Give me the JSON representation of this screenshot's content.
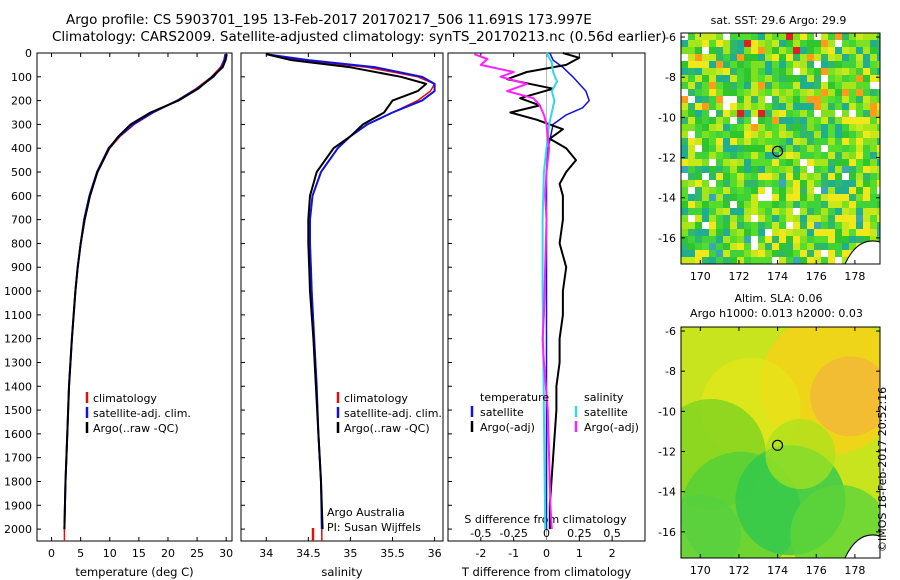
{
  "header": {
    "line1": "Argo profile: CS 5903701_195 13-Feb-2017 20170217_506 11.691S 173.997E",
    "line2": "Climatology: CARS2009. Satellite-adjusted climatology: synTS_20170213.nc (0.56d earlier)"
  },
  "colors": {
    "climatology": "#e01010",
    "satellite": "#1010e0",
    "argo": "#000000",
    "sal_satellite": "#30d8e8",
    "sal_argo": "#ff20ff"
  },
  "chart_data": [
    {
      "type": "line",
      "id": "temperature",
      "title": "",
      "xlabel": "temperature (deg C)",
      "ylabel": "",
      "xlim": [
        -2.5,
        31
      ],
      "ylim": [
        0,
        2050
      ],
      "x_ticks": [
        0,
        5,
        10,
        15,
        20,
        25,
        30
      ],
      "y_ticks": [
        0,
        100,
        200,
        300,
        400,
        500,
        600,
        700,
        800,
        900,
        1000,
        1100,
        1200,
        1300,
        1400,
        1500,
        1600,
        1700,
        1800,
        1900,
        2000
      ],
      "legend": [
        "climatology",
        "satellite-adj. clim.",
        "Argo(..raw -QC)"
      ],
      "legend_position": "lower-center",
      "series": [
        {
          "name": "climatology",
          "color_key": "climatology",
          "depth": [
            5,
            30,
            60,
            100,
            150,
            200,
            250,
            300,
            350,
            400,
            500,
            600,
            700,
            800,
            900,
            1000,
            1200,
            1400,
            1600,
            1800,
            2000,
            2050
          ],
          "values": [
            29.8,
            29.6,
            29.0,
            27.5,
            24.8,
            21.5,
            17.5,
            14.2,
            11.8,
            10.0,
            7.9,
            6.6,
            5.7,
            5.0,
            4.5,
            4.1,
            3.5,
            3.0,
            2.7,
            2.4,
            2.2,
            2.2
          ]
        },
        {
          "name": "satellite-adj. clim.",
          "color_key": "satellite",
          "depth": [
            5,
            30,
            60,
            100,
            150,
            200,
            250,
            300,
            350,
            400,
            500,
            600,
            700,
            800,
            900,
            1000,
            1200,
            1400,
            1600,
            1800,
            2000
          ],
          "values": [
            29.9,
            29.7,
            29.2,
            27.8,
            25.0,
            21.6,
            17.4,
            14.0,
            11.6,
            9.8,
            7.8,
            6.5,
            5.6,
            5.0,
            4.5,
            4.1,
            3.5,
            3.0,
            2.7,
            2.4,
            2.2
          ]
        },
        {
          "name": "Argo(..raw -QC)",
          "color_key": "argo",
          "depth": [
            5,
            30,
            60,
            100,
            150,
            200,
            250,
            300,
            350,
            400,
            500,
            600,
            700,
            800,
            900,
            1000,
            1200,
            1400,
            1600,
            1800,
            2000
          ],
          "values": [
            30.1,
            29.9,
            29.4,
            27.6,
            25.2,
            21.8,
            17.0,
            13.6,
            11.5,
            9.9,
            7.9,
            6.6,
            5.7,
            5.0,
            4.5,
            4.1,
            3.5,
            3.0,
            2.7,
            2.4,
            2.2
          ]
        }
      ]
    },
    {
      "type": "line",
      "id": "salinity",
      "title": "",
      "xlabel": "salinity",
      "ylabel": "",
      "xlim": [
        33.7,
        36.1
      ],
      "ylim": [
        0,
        2050
      ],
      "x_ticks": [
        34,
        34.5,
        35,
        35.5,
        36
      ],
      "legend": [
        "climatology",
        "satellite-adj. clim.",
        "Argo(..raw -QC)"
      ],
      "legend_position": "lower-right",
      "annotation": [
        "Argo Australia",
        "PI: Susan Wijffels"
      ],
      "series": [
        {
          "name": "climatology",
          "color_key": "climatology",
          "depth": [
            5,
            30,
            60,
            100,
            130,
            160,
            200,
            250,
            300,
            350,
            400,
            500,
            600,
            700,
            800,
            900,
            1000,
            1200,
            1400,
            1600,
            1800,
            2000,
            2050
          ],
          "values": [
            34.0,
            34.4,
            35.2,
            35.8,
            36.0,
            35.95,
            35.8,
            35.5,
            35.2,
            35.0,
            34.85,
            34.65,
            34.55,
            34.52,
            34.52,
            34.53,
            34.54,
            34.57,
            34.6,
            34.62,
            34.65,
            34.66,
            34.66
          ]
        },
        {
          "name": "satellite-adj. clim.",
          "color_key": "satellite",
          "depth": [
            5,
            30,
            60,
            100,
            130,
            160,
            200,
            250,
            300,
            350,
            400,
            500,
            600,
            700,
            800,
            900,
            1000,
            1200,
            1400,
            1600,
            1800,
            2000
          ],
          "values": [
            34.0,
            34.5,
            35.3,
            35.85,
            36.0,
            36.0,
            35.85,
            35.5,
            35.2,
            35.0,
            34.85,
            34.65,
            34.55,
            34.52,
            34.52,
            34.53,
            34.54,
            34.57,
            34.6,
            34.62,
            34.65,
            34.66
          ]
        },
        {
          "name": "Argo(..raw -QC)",
          "color_key": "argo",
          "depth": [
            5,
            30,
            60,
            100,
            130,
            160,
            200,
            250,
            300,
            350,
            400,
            500,
            600,
            700,
            800,
            900,
            1000,
            1200,
            1400,
            1600,
            1800,
            2000
          ],
          "values": [
            34.0,
            34.3,
            35.0,
            35.6,
            35.9,
            35.8,
            35.5,
            35.4,
            35.15,
            35.0,
            34.8,
            34.6,
            34.52,
            34.5,
            34.5,
            34.51,
            34.52,
            34.56,
            34.59,
            34.62,
            34.65,
            34.67
          ]
        }
      ]
    },
    {
      "type": "line",
      "id": "differences",
      "title": "",
      "xlabel": "T difference from climatology",
      "top_xlabel": "S difference from climatology",
      "ylabel": "",
      "xlim": [
        -3.0,
        3.0
      ],
      "ylim": [
        0,
        2050
      ],
      "x_ticks": [
        -2,
        -1,
        0,
        1,
        2
      ],
      "s_ticks": [
        -0.5,
        -0.25,
        0,
        0.25,
        0.5
      ],
      "s_tick_labels": [
        "-0.5",
        "-0.25",
        "0",
        "0.25",
        "0.5"
      ],
      "legend_headers": [
        "temperature",
        "salinity"
      ],
      "legend": [
        "satellite",
        "Argo(-adj)",
        "satellite",
        "Argo(-adj)"
      ],
      "series": [
        {
          "name": "T satellite",
          "color_key": "satellite",
          "depth": [
            0,
            30,
            60,
            100,
            130,
            160,
            200,
            230,
            260,
            300,
            400,
            500,
            700,
            1000,
            1500,
            2000
          ],
          "values": [
            0.1,
            0.2,
            0.5,
            0.8,
            1.0,
            1.2,
            1.3,
            1.1,
            0.6,
            0.2,
            0.05,
            0.0,
            0.0,
            0.0,
            0.0,
            0.0
          ]
        },
        {
          "name": "T Argo(-adj)",
          "color_key": "argo",
          "depth": [
            0,
            20,
            50,
            80,
            110,
            150,
            190,
            220,
            250,
            280,
            320,
            360,
            400,
            450,
            500,
            550,
            600,
            700,
            800,
            900,
            1000,
            1100,
            1200,
            1300,
            1400,
            1500,
            1700,
            1900,
            2000
          ],
          "values": [
            0.5,
            1.0,
            0.6,
            -0.6,
            -1.2,
            0.2,
            -0.8,
            -0.2,
            -1.1,
            -0.3,
            0.5,
            0.1,
            0.6,
            0.9,
            0.6,
            0.4,
            0.5,
            0.5,
            0.4,
            0.6,
            0.5,
            0.5,
            0.4,
            0.4,
            0.3,
            0.3,
            0.2,
            0.1,
            0.1
          ]
        },
        {
          "name": "S satellite",
          "color_key": "sal_satellite",
          "depth": [
            0,
            40,
            80,
            120,
            160,
            200,
            250,
            300,
            400,
            500,
            700,
            1000,
            1500,
            2000
          ],
          "values": [
            0.0,
            0.04,
            0.05,
            0.08,
            0.04,
            0.06,
            0.04,
            0.02,
            0.0,
            -0.02,
            -0.03,
            -0.03,
            -0.02,
            -0.01
          ]
        },
        {
          "name": "S Argo(-adj)",
          "color_key": "sal_argo",
          "depth": [
            5,
            25,
            50,
            80,
            100,
            130,
            160,
            190,
            220,
            260,
            300,
            350,
            400,
            500,
            600,
            700,
            900,
            1100,
            1200,
            1300,
            1500,
            1700,
            1900,
            2000
          ],
          "values": [
            -0.55,
            -0.45,
            -0.5,
            -0.25,
            -0.35,
            -0.15,
            -0.3,
            -0.1,
            -0.05,
            -0.02,
            0.0,
            0.01,
            0.02,
            0.0,
            -0.01,
            0.0,
            -0.01,
            -0.02,
            -0.03,
            -0.02,
            0.01,
            0.02,
            0.03,
            0.04
          ]
        }
      ]
    },
    {
      "type": "heatmap",
      "id": "sst_map",
      "title": "sat. SST: 29.6  Argo: 29.9",
      "xlabel": "",
      "ylabel": "",
      "xlim": [
        169,
        179.3
      ],
      "ylim": [
        -17.3,
        -5.8
      ],
      "x_ticks": [
        170,
        172,
        174,
        176,
        178
      ],
      "y_ticks": [
        -6,
        -8,
        -10,
        -12,
        -14,
        -16
      ],
      "float_position": {
        "lon": 173.997,
        "lat": -11.691
      }
    },
    {
      "type": "heatmap",
      "id": "sla_map",
      "title": "Altim. SLA: 0.06",
      "subtitle": "Argo h1000: 0.013  h2000: 0.03",
      "xlabel": "",
      "ylabel": "",
      "xlim": [
        169,
        179.3
      ],
      "ylim": [
        -17.3,
        -5.8
      ],
      "x_ticks": [
        170,
        172,
        174,
        176,
        178
      ],
      "y_ticks": [
        -6,
        -8,
        -10,
        -12,
        -14,
        -16
      ],
      "float_position": {
        "lon": 173.997,
        "lat": -11.691
      }
    }
  ],
  "credit": "©IMOS 18-Feb-2017 20:52:16"
}
